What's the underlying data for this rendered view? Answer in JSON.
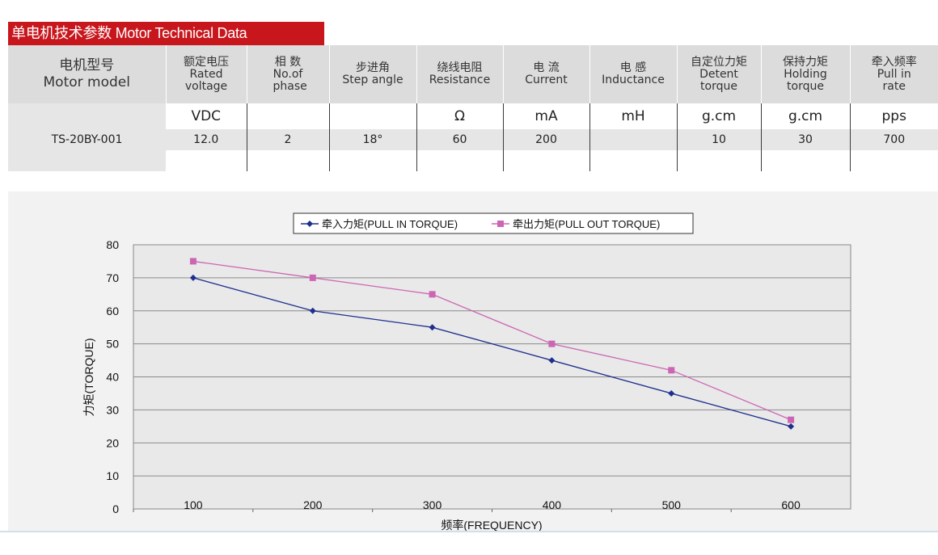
{
  "title": "单电机技术参数 Motor Technical Data",
  "table": {
    "headers": [
      {
        "zh": "电机型号",
        "en": "Motor model"
      },
      {
        "zh": "额定电压",
        "en": "Rated voltage"
      },
      {
        "zh": "相 数",
        "en": "No.of phase"
      },
      {
        "zh": "步进角",
        "en": "Step angle"
      },
      {
        "zh": "绕线电阻",
        "en": "Resistance"
      },
      {
        "zh": "电 流",
        "en": "Current"
      },
      {
        "zh": "电 感",
        "en": "Inductance"
      },
      {
        "zh": "自定位力矩",
        "en": "Detent torque"
      },
      {
        "zh": "保持力矩",
        "en": "Holding torque"
      },
      {
        "zh": "牵入频率",
        "en": "Pull in rate"
      }
    ],
    "units": [
      "",
      "VDC",
      "",
      "",
      "Ω",
      "mA",
      "mH",
      "g.cm",
      "g.cm",
      "pps"
    ],
    "rows": [
      [
        "TS-20BY-001",
        "12.0",
        "2",
        "18°",
        "60",
        "200",
        "",
        "10",
        "30",
        "700"
      ]
    ]
  },
  "chart_data": {
    "type": "line",
    "x": [
      100,
      200,
      300,
      400,
      500,
      600
    ],
    "series": [
      {
        "name": "牵入力矩(PULL IN TORQUE)",
        "values": [
          70,
          60,
          55,
          45,
          35,
          25
        ],
        "color": "#1f2f8f",
        "marker": "diamond"
      },
      {
        "name": "牵出力矩(PULL OUT TORQUE)",
        "values": [
          75,
          70,
          65,
          50,
          42,
          27
        ],
        "color": "#cc66b3",
        "marker": "square"
      }
    ],
    "xlabel": "频率(FREQUENCY)",
    "ylabel": "力矩(TORQUE)",
    "ylim": [
      0,
      80
    ],
    "yticks": [
      0,
      10,
      20,
      30,
      40,
      50,
      60,
      70,
      80
    ],
    "grid": true,
    "legend": "top-center"
  }
}
